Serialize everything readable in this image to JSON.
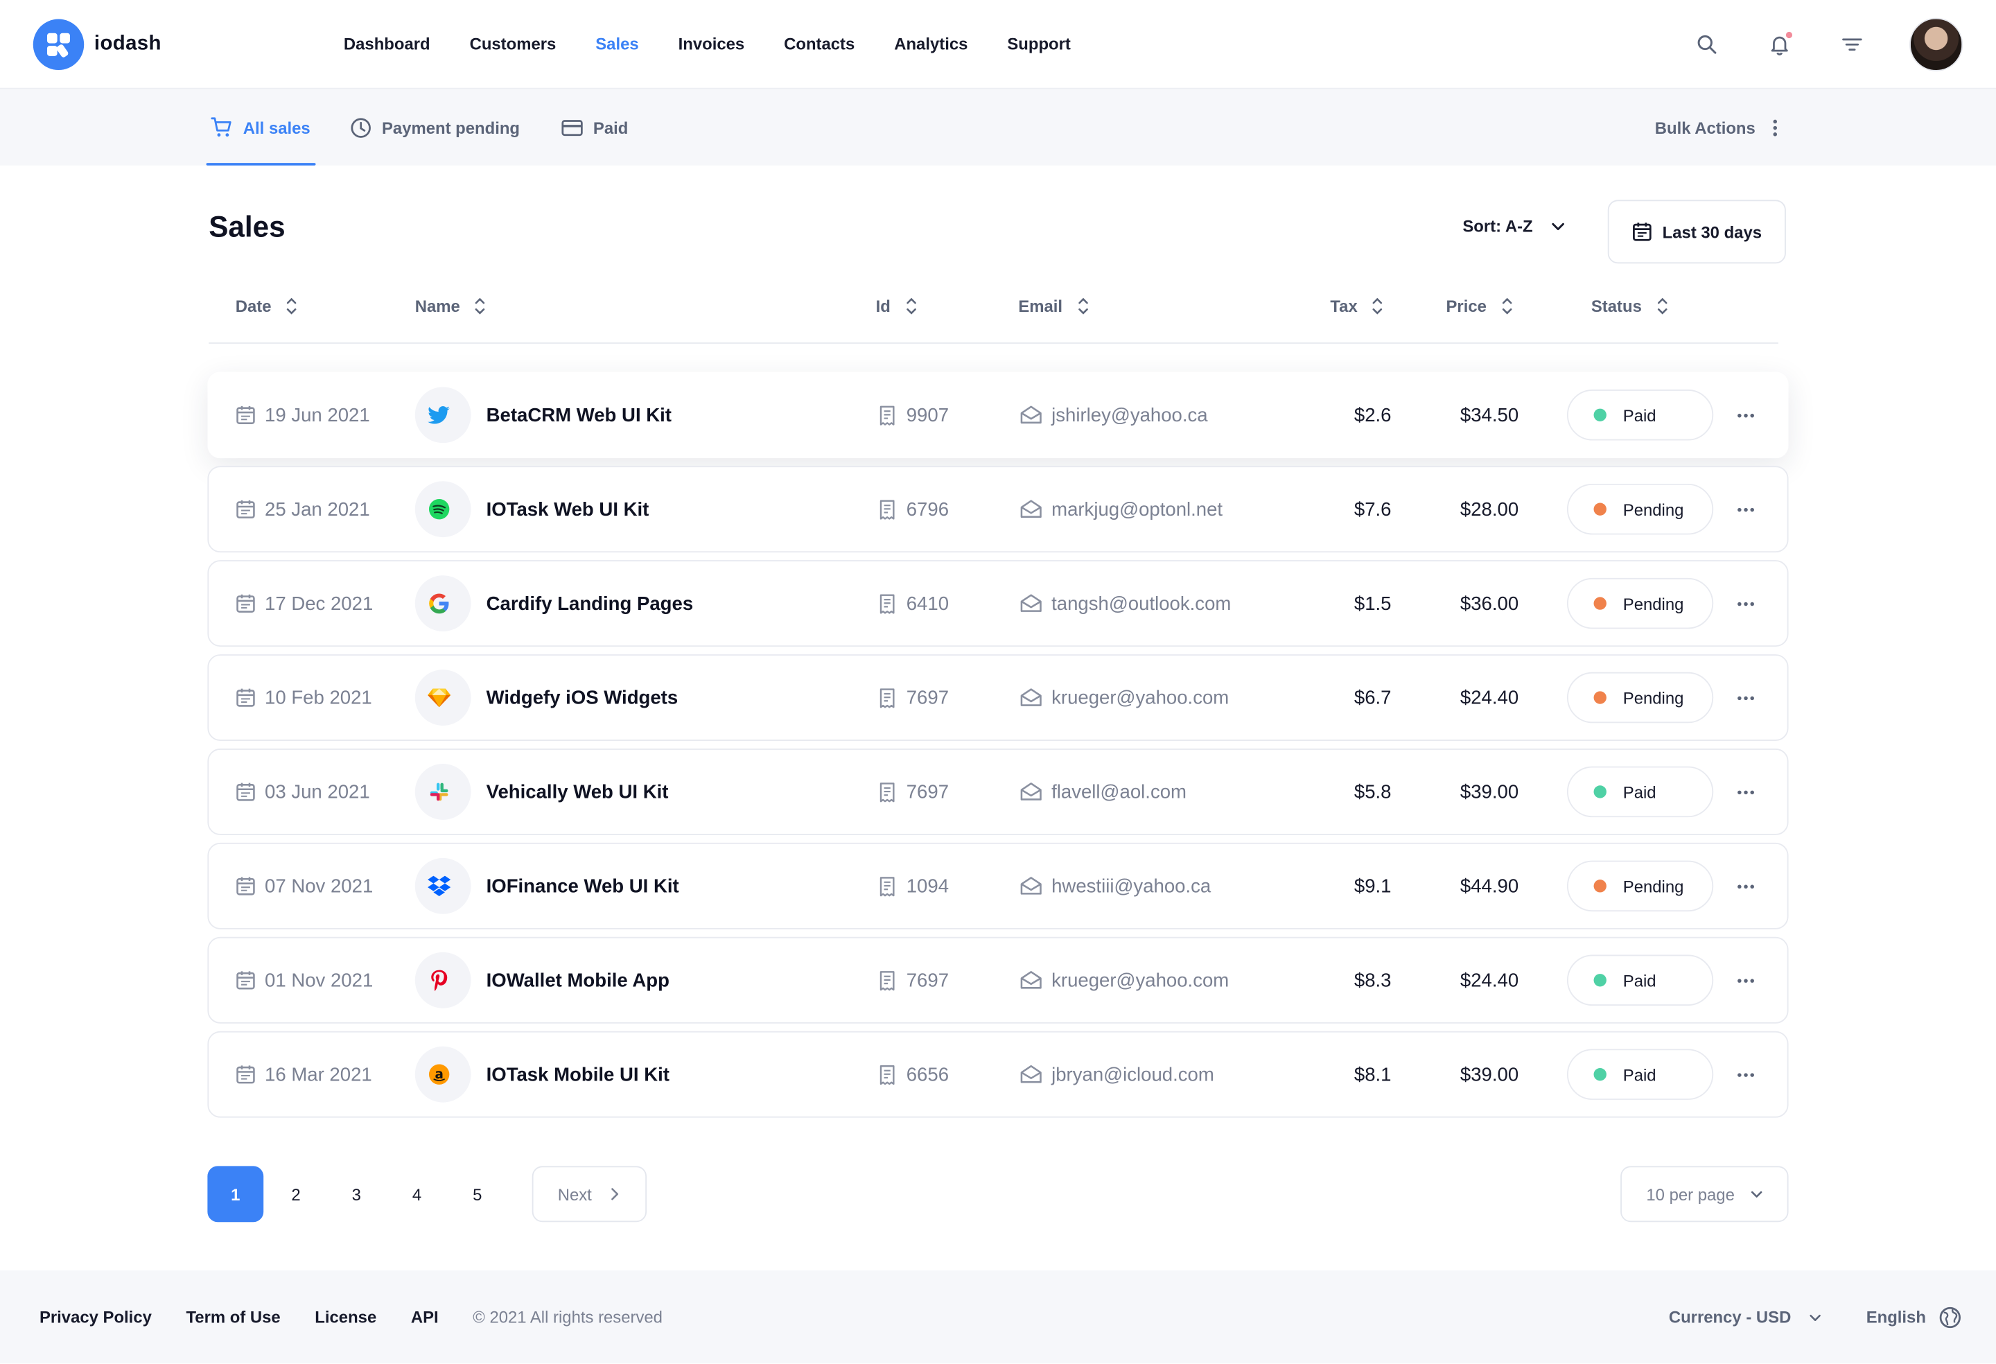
{
  "app": {
    "name": "iodash"
  },
  "nav": [
    {
      "label": "Dashboard",
      "active": false
    },
    {
      "label": "Customers",
      "active": false
    },
    {
      "label": "Sales",
      "active": true
    },
    {
      "label": "Invoices",
      "active": false
    },
    {
      "label": "Contacts",
      "active": false
    },
    {
      "label": "Analytics",
      "active": false
    },
    {
      "label": "Support",
      "active": false
    }
  ],
  "tabs": [
    {
      "label": "All sales",
      "icon": "cart-icon",
      "active": true
    },
    {
      "label": "Payment pending",
      "icon": "clock-icon",
      "active": false
    },
    {
      "label": "Paid",
      "icon": "credit-card-icon",
      "active": false
    }
  ],
  "bulk_actions": "Bulk Actions",
  "page": {
    "title": "Sales",
    "sort_label": "Sort: A-Z",
    "range_label": "Last 30 days"
  },
  "columns": [
    "Date",
    "Name",
    "Id",
    "Email",
    "Tax",
    "Price",
    "Status"
  ],
  "colors": {
    "accent": "#3b82f6",
    "paid": "#4fd1a5",
    "pending": "#f0824b"
  },
  "rows": [
    {
      "date": "19 Jun 2021",
      "brand": "twitter-icon",
      "name": "BetaCRM Web UI Kit",
      "id": "9907",
      "email": "jshirley@yahoo.ca",
      "tax": "$2.6",
      "price": "$34.50",
      "status": "Paid"
    },
    {
      "date": "25 Jan 2021",
      "brand": "spotify-icon",
      "name": "IOTask Web UI Kit",
      "id": "6796",
      "email": "markjug@optonl.net",
      "tax": "$7.6",
      "price": "$28.00",
      "status": "Pending"
    },
    {
      "date": "17 Dec 2021",
      "brand": "google-icon",
      "name": "Cardify Landing Pages",
      "id": "6410",
      "email": "tangsh@outlook.com",
      "tax": "$1.5",
      "price": "$36.00",
      "status": "Pending"
    },
    {
      "date": "10 Feb 2021",
      "brand": "sketch-icon",
      "name": "Widgefy iOS Widgets",
      "id": "7697",
      "email": "krueger@yahoo.com",
      "tax": "$6.7",
      "price": "$24.40",
      "status": "Pending"
    },
    {
      "date": "03 Jun 2021",
      "brand": "slack-icon",
      "name": "Vehically Web UI Kit",
      "id": "7697",
      "email": "flavell@aol.com",
      "tax": "$5.8",
      "price": "$39.00",
      "status": "Paid"
    },
    {
      "date": "07 Nov 2021",
      "brand": "dropbox-icon",
      "name": "IOFinance Web UI Kit",
      "id": "1094",
      "email": "hwestiii@yahoo.ca",
      "tax": "$9.1",
      "price": "$44.90",
      "status": "Pending"
    },
    {
      "date": "01 Nov 2021",
      "brand": "pinterest-icon",
      "name": "IOWallet Mobile App",
      "id": "7697",
      "email": "krueger@yahoo.com",
      "tax": "$8.3",
      "price": "$24.40",
      "status": "Paid"
    },
    {
      "date": "16 Mar 2021",
      "brand": "amazon-icon",
      "name": "IOTask Mobile UI Kit",
      "id": "6656",
      "email": "jbryan@icloud.com",
      "tax": "$8.1",
      "price": "$39.00",
      "status": "Paid"
    }
  ],
  "pagination": {
    "pages": [
      "1",
      "2",
      "3",
      "4",
      "5"
    ],
    "current": "1",
    "next": "Next",
    "per_page": "10 per page"
  },
  "footer": {
    "links": [
      "Privacy Policy",
      "Term of Use",
      "License",
      "API"
    ],
    "copyright": "© 2021 All rights reserved",
    "currency": "Currency - USD",
    "language": "English"
  }
}
